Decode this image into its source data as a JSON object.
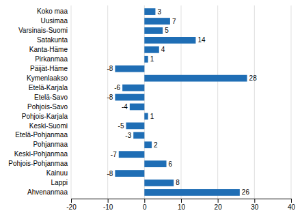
{
  "chart_data": {
    "type": "bar",
    "orientation": "horizontal",
    "categories": [
      "Koko maa",
      "Uusimaa",
      "Varsinais-Suomi",
      "Satakunta",
      "Kanta-Häme",
      "Pirkanmaa",
      "Päijät-Häme",
      "Kymenlaakso",
      "Etelä-Karjala",
      "Etelä-Savo",
      "Pohjois-Savo",
      "Pohjois-Karjala",
      "Keski-Suomi",
      "Etelä-Pohjanmaa",
      "Pohjanmaa",
      "Keski-Pohjanmaa",
      "Pohjois-Pohjanmaa",
      "Kainuu",
      "Lappi",
      "Ahvenanmaa"
    ],
    "values": [
      3,
      7,
      5,
      14,
      4,
      1,
      -8,
      28,
      -6,
      -8,
      -4,
      1,
      -5,
      -3,
      2,
      -7,
      6,
      -8,
      8,
      26
    ],
    "color": "#1f6eb5",
    "xlim": [
      -20,
      40
    ],
    "xticks": [
      -20,
      -10,
      0,
      10,
      20,
      30,
      40
    ],
    "grid": true,
    "data_labels": true
  }
}
